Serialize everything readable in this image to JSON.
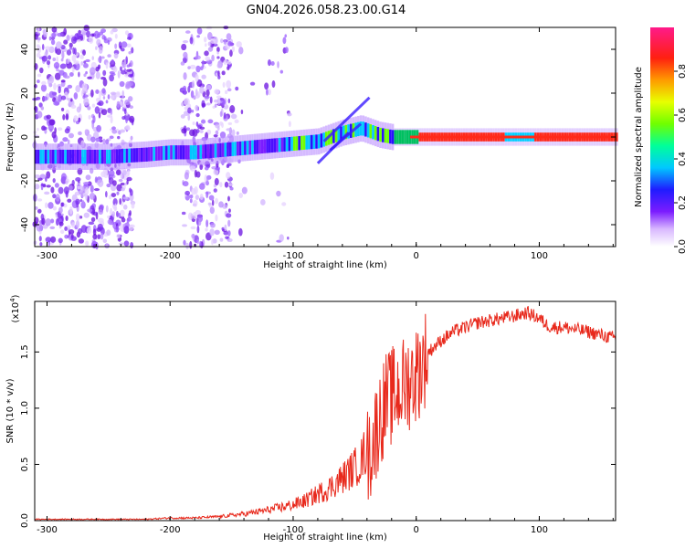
{
  "title": "GN04.2026.058.23.00.G14",
  "colors": {
    "background": "#ffffff",
    "axis": "#000000",
    "snr_line": "#e8291c",
    "spectrum_band": "#ff2a1a"
  },
  "chart_data": [
    {
      "type": "heatmap",
      "name": "spectrogram",
      "xlabel": "Height of straight line (km)",
      "ylabel": "Frequency (Hz)",
      "xlim": [
        -310,
        162
      ],
      "ylim": [
        -50,
        50
      ],
      "xticks": [
        -300,
        -200,
        -100,
        0,
        100
      ],
      "xtick_labels": [
        "-300",
        "-200",
        "-100",
        "0",
        "100"
      ],
      "yticks": [
        -40,
        -20,
        0,
        20,
        40
      ],
      "ytick_labels": [
        "-40",
        "-20",
        "0",
        "20",
        "40"
      ],
      "ridge": {
        "x": [
          -310,
          -280,
          -250,
          -220,
          -200,
          -180,
          -160,
          -140,
          -120,
          -100,
          -80,
          -60,
          -45,
          -30,
          -20,
          0,
          20,
          60,
          100,
          162
        ],
        "y": [
          -9,
          -9,
          -9,
          -8,
          -7,
          -7,
          -6,
          -5,
          -4,
          -3,
          -2,
          2,
          4,
          1,
          0,
          0,
          0,
          0,
          0,
          0
        ]
      },
      "colorbar": {
        "label": "Normalized spectral amplitude",
        "range": [
          0,
          1
        ],
        "ticks": [
          0.0,
          0.2,
          0.4,
          0.6,
          0.8
        ],
        "tick_labels": [
          "0.0",
          "0.2",
          "0.4",
          "0.6",
          "0.8"
        ]
      }
    },
    {
      "type": "line",
      "name": "snr",
      "xlabel": "Height of straight line (km)",
      "ylabel": "SNR (10 * v/v)",
      "y_multiplier": "(x10",
      "y_multiplier_exp": "4",
      "y_multiplier_close": ")",
      "xlim": [
        -310,
        162
      ],
      "ylim": [
        0,
        1.95
      ],
      "xticks": [
        -300,
        -200,
        -100,
        0,
        100
      ],
      "xtick_labels": [
        "-300",
        "-200",
        "-100",
        "0",
        "100"
      ],
      "yticks": [
        0.0,
        0.5,
        1.0,
        1.5
      ],
      "ytick_labels": [
        "0.0",
        "0.5",
        "1.0",
        "1.5"
      ],
      "series": [
        {
          "name": "SNR",
          "x": [
            -310,
            -280,
            -250,
            -220,
            -200,
            -180,
            -160,
            -140,
            -120,
            -100,
            -90,
            -80,
            -70,
            -60,
            -50,
            -45,
            -40,
            -35,
            -30,
            -25,
            -20,
            -15,
            -10,
            -5,
            0,
            5,
            10,
            20,
            30,
            40,
            50,
            60,
            70,
            80,
            90,
            100,
            105,
            110,
            120,
            130,
            140,
            150,
            162
          ],
          "y": [
            0.01,
            0.01,
            0.01,
            0.01,
            0.02,
            0.02,
            0.03,
            0.05,
            0.08,
            0.12,
            0.15,
            0.2,
            0.25,
            0.32,
            0.4,
            0.45,
            0.55,
            0.7,
            0.9,
            1.05,
            1.1,
            1.15,
            1.2,
            1.25,
            1.3,
            1.4,
            1.5,
            1.6,
            1.68,
            1.72,
            1.76,
            1.78,
            1.8,
            1.82,
            1.85,
            1.8,
            1.75,
            1.72,
            1.72,
            1.7,
            1.68,
            1.65,
            1.62
          ]
        }
      ]
    }
  ]
}
